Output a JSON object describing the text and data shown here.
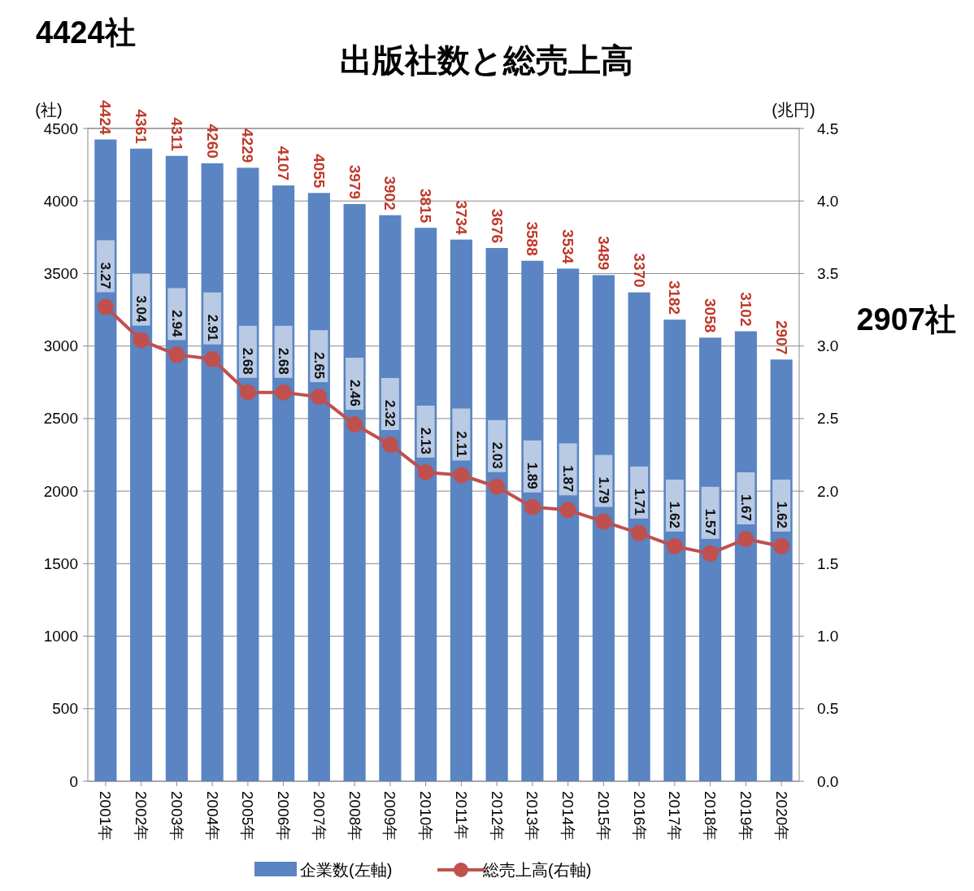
{
  "chart_data": {
    "type": "bar",
    "title": "出版社数と総売上高",
    "ylabel": "(社)",
    "y2label": "(兆円)",
    "annotations": [
      "4424社",
      "2907社"
    ],
    "categories": [
      "2001年",
      "2002年",
      "2003年",
      "2004年",
      "2005年",
      "2006年",
      "2007年",
      "2008年",
      "2009年",
      "2010年",
      "2011年",
      "2012年",
      "2013年",
      "2014年",
      "2015年",
      "2016年",
      "2017年",
      "2018年",
      "2019年",
      "2020年"
    ],
    "series": [
      {
        "name": "企業数(左軸)",
        "color": "#5a84c2",
        "values": [
          4424,
          4361,
          4311,
          4260,
          4229,
          4107,
          4055,
          3979,
          3902,
          3815,
          3734,
          3676,
          3588,
          3534,
          3489,
          3370,
          3182,
          3058,
          3102,
          2907
        ]
      },
      {
        "name": "総売上高(右軸)",
        "type": "line",
        "axis": "y2",
        "color": "#c0504d",
        "values": [
          3.27,
          3.04,
          2.94,
          2.91,
          2.68,
          2.68,
          2.65,
          2.46,
          2.32,
          2.13,
          2.11,
          2.03,
          1.89,
          1.87,
          1.79,
          1.71,
          1.62,
          1.57,
          1.67,
          1.62
        ]
      }
    ],
    "ylim": [
      0,
      4500
    ],
    "yticks": [
      0,
      500,
      1000,
      1500,
      2000,
      2500,
      3000,
      3500,
      4000,
      4500
    ],
    "y2lim": [
      0,
      4.5
    ],
    "y2ticks": [
      {
        "value": 0,
        "label": "0.0"
      },
      {
        "value": 0.5,
        "label": "0.5"
      },
      {
        "value": 1,
        "label": "1.0"
      },
      {
        "value": 1.5,
        "label": "1.5"
      },
      {
        "value": 2,
        "label": "2.0"
      },
      {
        "value": 2.5,
        "label": "2.5"
      },
      {
        "value": 3,
        "label": "3.0"
      },
      {
        "value": 3.5,
        "label": "3.5"
      },
      {
        "value": 4,
        "label": "4.0"
      },
      {
        "value": 4.5,
        "label": "4.5"
      }
    ],
    "grid": "y",
    "legend": "bottom",
    "marker": "circle",
    "line_style": "solid",
    "data_labels": true
  }
}
